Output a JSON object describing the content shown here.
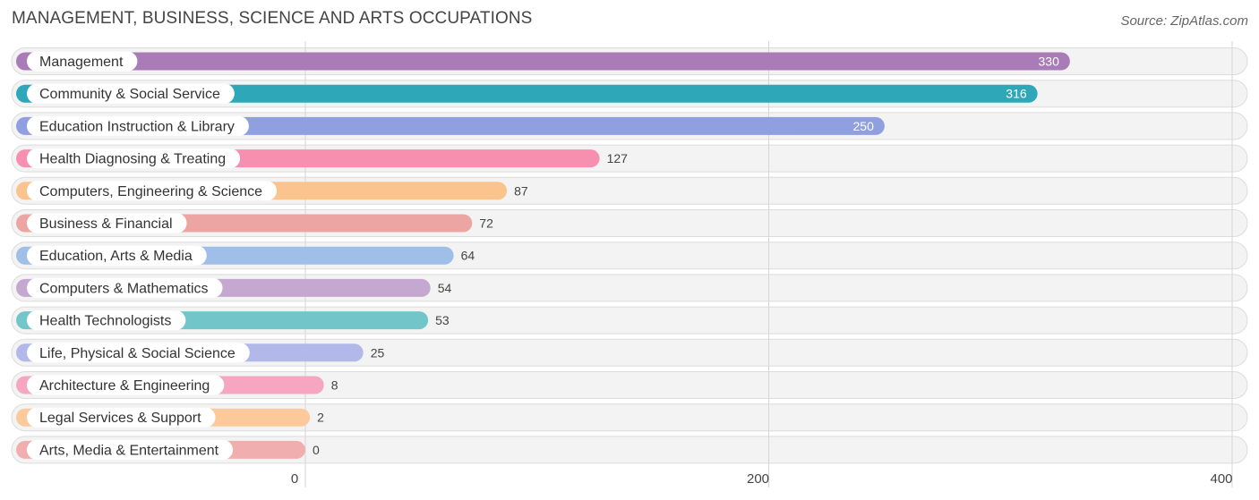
{
  "header": {
    "title": "MANAGEMENT, BUSINESS, SCIENCE AND ARTS OCCUPATIONS",
    "source": "Source: ZipAtlas.com"
  },
  "chart_data": {
    "type": "bar",
    "orientation": "horizontal",
    "title": "MANAGEMENT, BUSINESS, SCIENCE AND ARTS OCCUPATIONS",
    "xlabel": "",
    "ylabel": "",
    "xlim": [
      0,
      400
    ],
    "x_ticks": [
      0,
      200,
      400
    ],
    "grid": true,
    "legend": "none",
    "categories": [
      "Management",
      "Community & Social Service",
      "Education Instruction & Library",
      "Health Diagnosing & Treating",
      "Computers, Engineering & Science",
      "Business & Financial",
      "Education, Arts & Media",
      "Computers & Mathematics",
      "Health Technologists",
      "Life, Physical & Social Science",
      "Architecture & Engineering",
      "Legal Services & Support",
      "Arts, Media & Entertainment"
    ],
    "values": [
      330,
      316,
      250,
      127,
      87,
      72,
      64,
      54,
      53,
      25,
      8,
      2,
      0
    ],
    "colors": [
      "#a97cb8",
      "#2ea8b8",
      "#8f9fe0",
      "#f68fb0",
      "#fbc48e",
      "#eda5a3",
      "#9fbfe8",
      "#c4a8d0",
      "#72c6ca",
      "#b3b8ea",
      "#f6a6c0",
      "#fbc99c",
      "#f1aeae"
    ]
  }
}
